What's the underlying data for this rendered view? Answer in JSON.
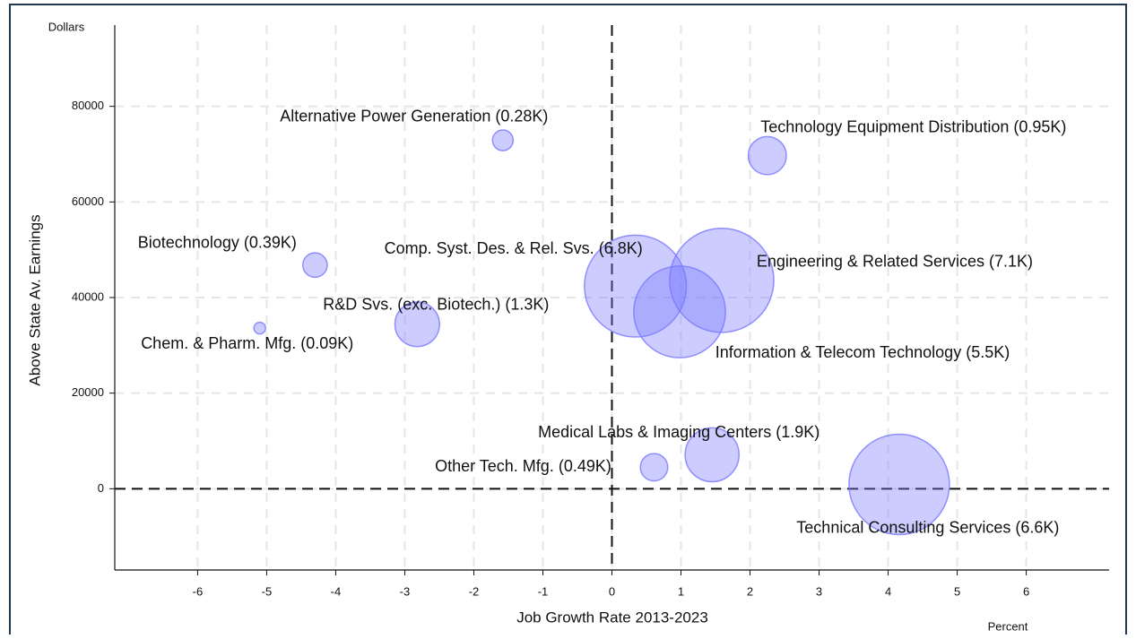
{
  "chart_data": {
    "type": "scatter",
    "x_label": "Job Growth Rate 2013-2023",
    "y_label": "Above State Av. Earnings",
    "x_unit": "Percent",
    "y_unit": "Dollars",
    "color": "#7878ff",
    "grid": true,
    "xlim": [
      -7.2,
      7.2
    ],
    "ylim": [
      -17000,
      97000
    ],
    "xticks": [
      -6,
      -5,
      -4,
      -3,
      -2,
      -1,
      0,
      1,
      2,
      3,
      4,
      5,
      6
    ],
    "yticks": [
      0,
      20000,
      40000,
      60000,
      80000
    ],
    "labels": [
      "Alternative Power Generation (0.28K)",
      "Technology Equipment Distribution (0.95K)",
      "Biotechnology (0.39K)",
      "Chem. & Pharm. Mfg. (0.09K)",
      "R&D Svs. (exc. Biotech.) (1.3K)",
      "Comp. Syst. Des. & Rel. Svs. (6.8K)",
      "Engineering & Related Services (7.1K)",
      "Information & Telecom Technology (5.5K)",
      "Medical Labs & Imaging Centers (1.9K)",
      "Other Tech. Mfg. (0.49K)",
      "Technical Consulting Services (6.6K)"
    ],
    "x": [
      -1.58,
      2.25,
      -4.3,
      -5.1,
      -2.82,
      0.34,
      1.59,
      0.98,
      1.45,
      0.61,
      4.16
    ],
    "values": [
      72900,
      69700,
      46800,
      33600,
      34400,
      42400,
      43600,
      37000,
      7100,
      4500,
      900
    ],
    "sizes": [
      0.28,
      0.95,
      0.39,
      0.09,
      1.3,
      6.8,
      7.1,
      5.5,
      1.9,
      0.49,
      6.6
    ]
  }
}
